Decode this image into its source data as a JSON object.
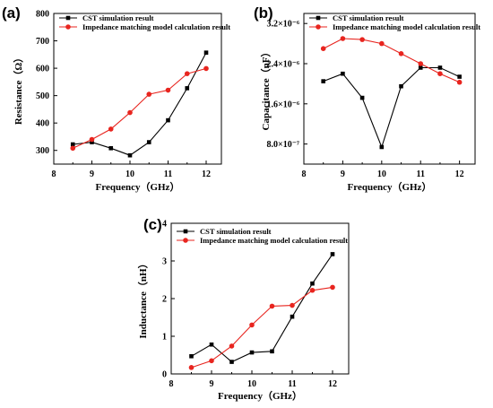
{
  "chart_data": [
    {
      "type": "line",
      "panel_label": "(a)",
      "xlabel": "Frequency（GHz）",
      "ylabel": "Resistance（Ω）",
      "xlim": [
        8,
        12.4
      ],
      "ylim": [
        250,
        800
      ],
      "x_ticks": [
        "8",
        "9",
        "10",
        "11",
        "12"
      ],
      "x_tick_values": [
        8,
        9,
        10,
        11,
        12
      ],
      "y_ticks": [
        "300",
        "400",
        "500",
        "600",
        "700",
        "800"
      ],
      "y_tick_values": [
        300,
        400,
        500,
        600,
        700,
        800
      ],
      "legend_position": "top-left",
      "series": [
        {
          "name": "CST simulation result",
          "color": "#000000",
          "marker": "square",
          "x": [
            8.5,
            9,
            9.5,
            10,
            10.5,
            11,
            11.5,
            12
          ],
          "y": [
            322,
            330,
            308,
            282,
            330,
            410,
            527,
            657
          ]
        },
        {
          "name": "Impedance matching model calculation result",
          "color": "#e8251f",
          "marker": "circle",
          "x": [
            8.5,
            9,
            9.5,
            10,
            10.5,
            11,
            11.5,
            12
          ],
          "y": [
            308,
            340,
            378,
            438,
            505,
            520,
            580,
            599
          ]
        }
      ]
    },
    {
      "type": "line",
      "panel_label": "(b)",
      "xlabel": "Frequency（GHz）",
      "ylabel": "Capacitance（nF）",
      "xlim": [
        8,
        12.4
      ],
      "ylim": [
        4e-07,
        3.4e-06
      ],
      "x_ticks": [
        "8",
        "9",
        "10",
        "11",
        "12"
      ],
      "x_tick_values": [
        8,
        9,
        10,
        11,
        12
      ],
      "y_ticks": [
        "8.0×10⁻⁷",
        "1.6×10⁻⁶",
        "2.4×10⁻⁶",
        "3.2×10⁻⁶"
      ],
      "y_tick_values": [
        8e-07,
        1.6e-06,
        2.4e-06,
        3.2e-06
      ],
      "legend_position": "top-left",
      "series": [
        {
          "name": "CST simulation result",
          "color": "#000000",
          "marker": "square",
          "x": [
            8.5,
            9,
            9.5,
            10,
            10.5,
            11,
            11.5,
            12
          ],
          "y": [
            2.05e-06,
            2.2e-06,
            1.72e-06,
            7.4e-07,
            1.95e-06,
            2.32e-06,
            2.32e-06,
            2.14e-06
          ]
        },
        {
          "name": "Impedance matching model calculation result",
          "color": "#e8251f",
          "marker": "circle",
          "x": [
            8.5,
            9,
            9.5,
            10,
            10.5,
            11,
            11.5,
            12
          ],
          "y": [
            2.7e-06,
            2.9e-06,
            2.88e-06,
            2.8e-06,
            2.6e-06,
            2.4e-06,
            2.2e-06,
            2.03e-06
          ]
        }
      ]
    },
    {
      "type": "line",
      "panel_label": "(c)",
      "xlabel": "Frequency（GHz）",
      "ylabel": "Inductance（nH）",
      "xlim": [
        8,
        12.4
      ],
      "ylim": [
        0,
        4
      ],
      "x_ticks": [
        "8",
        "9",
        "10",
        "11",
        "12"
      ],
      "x_tick_values": [
        8,
        9,
        10,
        11,
        12
      ],
      "y_ticks": [
        "0",
        "1",
        "2",
        "3",
        "4"
      ],
      "y_tick_values": [
        0,
        1,
        2,
        3,
        4
      ],
      "legend_position": "top-left",
      "series": [
        {
          "name": "CST simulation result",
          "color": "#000000",
          "marker": "square",
          "x": [
            8.5,
            9,
            9.5,
            10,
            10.5,
            11,
            11.5,
            12
          ],
          "y": [
            0.47,
            0.78,
            0.32,
            0.57,
            0.6,
            1.52,
            2.4,
            3.18
          ]
        },
        {
          "name": "Impedance matching model calculation result",
          "color": "#e8251f",
          "marker": "circle",
          "x": [
            8.5,
            9,
            9.5,
            10,
            10.5,
            11,
            11.5,
            12
          ],
          "y": [
            0.17,
            0.35,
            0.74,
            1.3,
            1.8,
            1.82,
            2.22,
            2.3
          ]
        }
      ]
    }
  ]
}
